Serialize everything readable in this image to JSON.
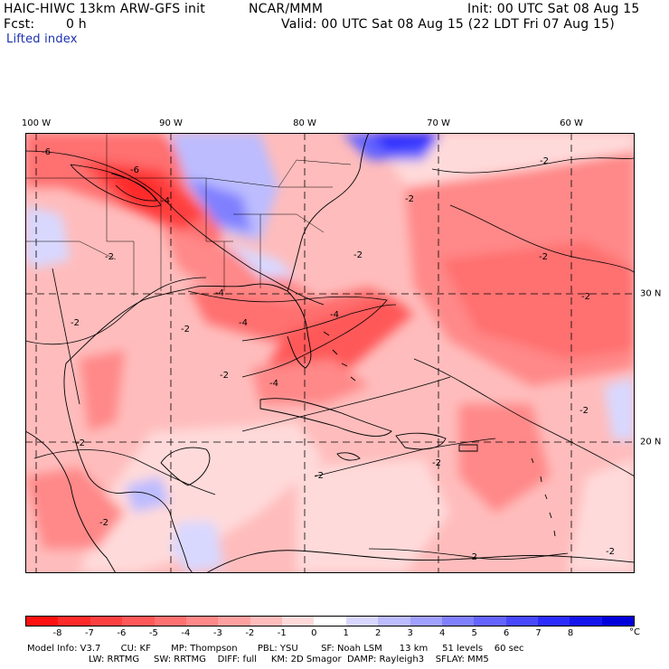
{
  "header": {
    "model": "HAIC-HIWC 13km ARW-GFS init",
    "org": "NCAR/MMM",
    "init": "Init: 00 UTC Sat 08 Aug 15",
    "fcst_label": "Fcst:",
    "fcst_value": "0 h",
    "valid": "Valid: 00 UTC Sat 08 Aug 15 (22 LDT Fri 07 Aug 15)",
    "field": "Lifted index"
  },
  "map": {
    "lon_labels": [
      "100 W",
      "90 W",
      "80 W",
      "70 W",
      "60 W"
    ],
    "lat_labels": [
      "30 N",
      "20 N"
    ],
    "contour_labels": [
      "-6",
      "-6",
      "-4",
      "-2",
      "-2",
      "-4",
      "-4",
      "-4",
      "-2",
      "-2",
      "-2",
      "-2",
      "-4",
      "-2",
      "-2",
      "-2",
      "-2",
      "-2",
      "-2",
      "-2",
      "-2",
      "-2",
      "-2"
    ]
  },
  "colorbar": {
    "ticks": [
      "-8",
      "-7",
      "-6",
      "-5",
      "-4",
      "-3",
      "-2",
      "-1",
      "0",
      "1",
      "2",
      "3",
      "4",
      "5",
      "6",
      "7",
      "8"
    ],
    "unit": "°C",
    "colors": [
      "#ff1010",
      "#ff2a2a",
      "#ff4040",
      "#ff5858",
      "#ff7070",
      "#ff8888",
      "#ffa0a0",
      "#ffbcbc",
      "#ffdada",
      "#ffffff",
      "#d8d8ff",
      "#bcbcff",
      "#a0a0ff",
      "#8080ff",
      "#6464ff",
      "#4848ff",
      "#2c2cff",
      "#1414ee",
      "#0000dd"
    ]
  },
  "footer": {
    "line1": "Model Info: V3.7       CU: KF       MP: Thompson       PBL: YSU        SF: Noah LSM      13 km     51 levels    60 sec",
    "line2": "LW: RRTMG     SW: RRTMG    DIFF: full     KM: 2D Smagor  DAMP: Rayleigh3    SFLAY: MM5"
  }
}
